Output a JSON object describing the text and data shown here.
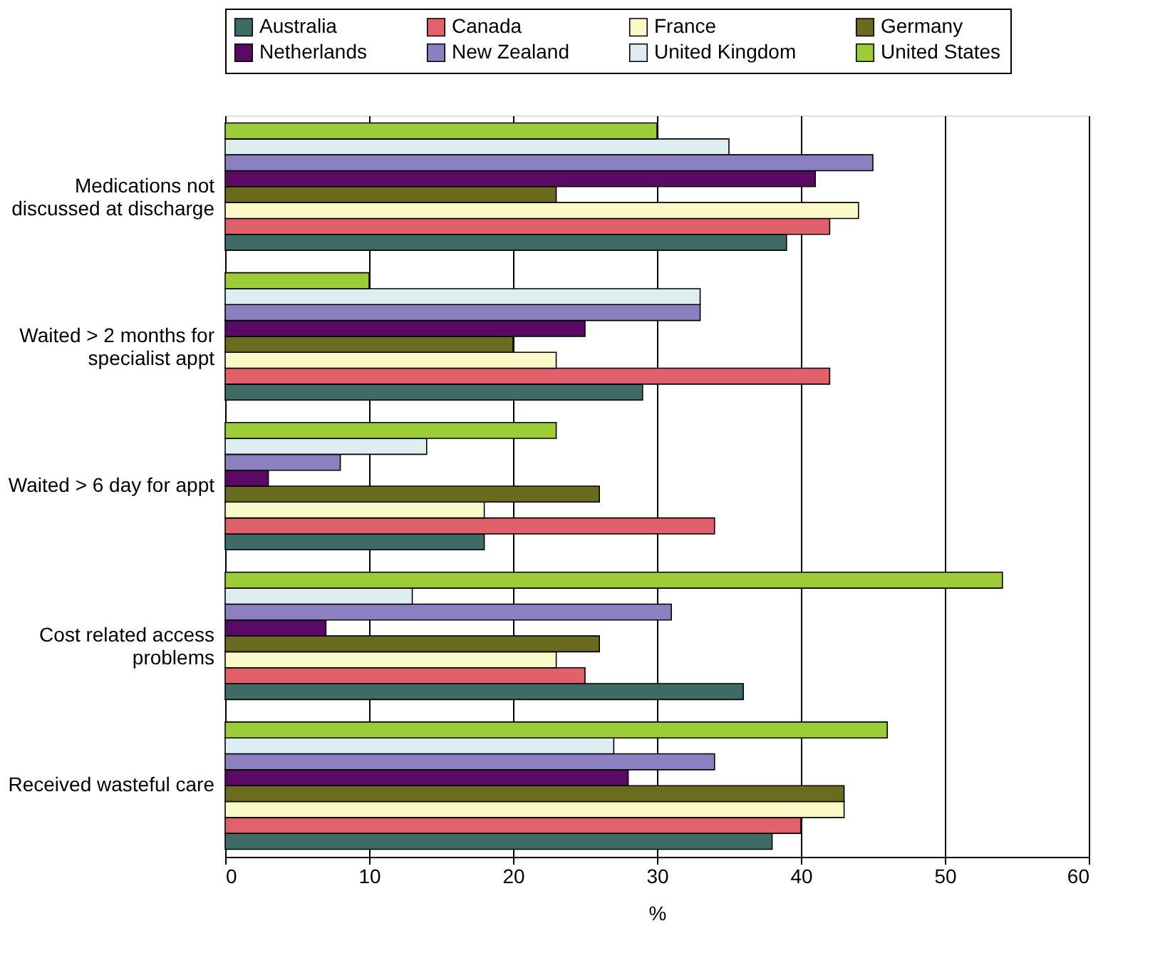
{
  "chart_data": {
    "type": "bar",
    "orientation": "horizontal",
    "xlabel": "%",
    "categories": [
      "Medications not\ndiscussed at discharge",
      "Waited > 2 months for\nspecialist appt",
      "Waited > 6 day for appt",
      "Cost related access\nproblems",
      "Received wasteful care"
    ],
    "series": [
      {
        "name": "Australia",
        "color": "#3f6b66",
        "values": [
          39,
          29,
          18,
          36,
          38
        ]
      },
      {
        "name": "Canada",
        "color": "#e0606b",
        "values": [
          42,
          42,
          34,
          25,
          40
        ]
      },
      {
        "name": "France",
        "color": "#fafac8",
        "values": [
          44,
          23,
          18,
          23,
          43
        ]
      },
      {
        "name": "Germany",
        "color": "#6b6b1f",
        "values": [
          23,
          20,
          26,
          26,
          43
        ]
      },
      {
        "name": "Netherlands",
        "color": "#5a0a64",
        "values": [
          41,
          25,
          3,
          7,
          28
        ]
      },
      {
        "name": "New Zealand",
        "color": "#8c80c0",
        "values": [
          45,
          33,
          8,
          31,
          34
        ]
      },
      {
        "name": "United Kingdom",
        "color": "#dceef0",
        "values": [
          35,
          33,
          14,
          13,
          27
        ]
      },
      {
        "name": "United States",
        "color": "#9ccc38",
        "values": [
          30,
          10,
          23,
          54,
          46
        ]
      }
    ],
    "xlim": [
      0,
      60
    ],
    "xticks": [
      0,
      10,
      20,
      30,
      40,
      50,
      60
    ],
    "grid": "x",
    "legend": "top"
  }
}
